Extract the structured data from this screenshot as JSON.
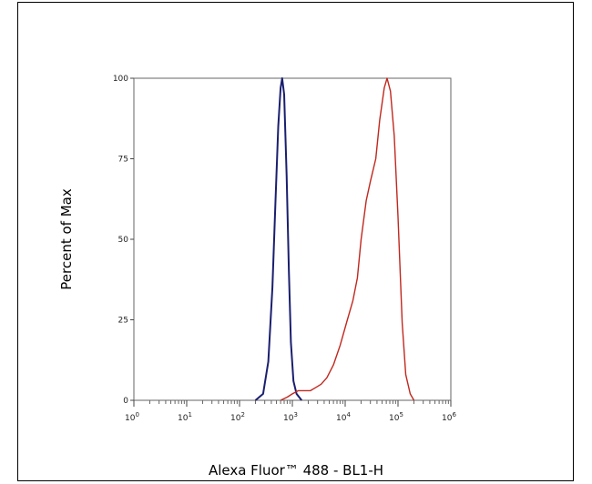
{
  "chart_data": {
    "type": "line",
    "title": "",
    "xlabel": "Alexa Fluor™ 488 - BL1-H",
    "ylabel": "Percent of Max",
    "xscale": "log",
    "xlim": [
      1,
      1000000
    ],
    "ylim": [
      0,
      100
    ],
    "x_ticks": [
      {
        "base": "10",
        "exp": "0"
      },
      {
        "base": "10",
        "exp": "1"
      },
      {
        "base": "10",
        "exp": "2"
      },
      {
        "base": "10",
        "exp": "3"
      },
      {
        "base": "10",
        "exp": "4"
      },
      {
        "base": "10",
        "exp": "5"
      },
      {
        "base": "10",
        "exp": "6"
      }
    ],
    "y_ticks": [
      "0",
      "25",
      "50",
      "75",
      "100"
    ],
    "grid": false,
    "series": [
      {
        "color": "#1a1f6e",
        "points": [
          [
            200,
            0
          ],
          [
            280,
            2
          ],
          [
            350,
            12
          ],
          [
            420,
            35
          ],
          [
            480,
            62
          ],
          [
            540,
            85
          ],
          [
            600,
            97
          ],
          [
            640,
            100
          ],
          [
            700,
            95
          ],
          [
            780,
            70
          ],
          [
            860,
            40
          ],
          [
            940,
            18
          ],
          [
            1050,
            6
          ],
          [
            1200,
            2
          ],
          [
            1500,
            0
          ]
        ]
      },
      {
        "color": "#c0281e",
        "points": [
          [
            600,
            0
          ],
          [
            800,
            1
          ],
          [
            1000,
            2
          ],
          [
            1300,
            3
          ],
          [
            1800,
            3
          ],
          [
            2200,
            3
          ],
          [
            2800,
            4
          ],
          [
            3500,
            5
          ],
          [
            4500,
            7
          ],
          [
            6000,
            11
          ],
          [
            8000,
            17
          ],
          [
            11000,
            25
          ],
          [
            14000,
            31
          ],
          [
            17000,
            38
          ],
          [
            20000,
            50
          ],
          [
            25000,
            62
          ],
          [
            30000,
            68
          ],
          [
            38000,
            75
          ],
          [
            45000,
            87
          ],
          [
            55000,
            97
          ],
          [
            62000,
            100
          ],
          [
            72000,
            96
          ],
          [
            85000,
            82
          ],
          [
            100000,
            57
          ],
          [
            120000,
            24
          ],
          [
            140000,
            8
          ],
          [
            170000,
            2
          ],
          [
            200000,
            0
          ]
        ]
      }
    ]
  }
}
